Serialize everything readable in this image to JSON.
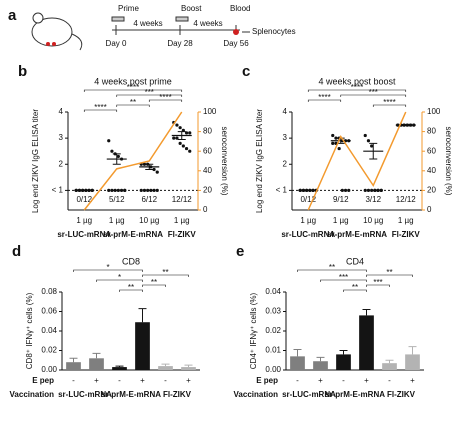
{
  "timeline": {
    "panel": "a",
    "events": [
      {
        "label": "Prime",
        "day": "Day 0"
      },
      {
        "label": "Boost",
        "day": "Day 28"
      },
      {
        "label": "Blood",
        "day": "Day 56"
      }
    ],
    "intervals": [
      "4 weeks",
      "4 weeks"
    ],
    "endpoint": "Splenocytes"
  },
  "chart_data": [
    {
      "type": "scatter_dot",
      "panel": "b",
      "title": "4 weeks post prime",
      "ylabel": "Log end ZIKV IgG  ELISA titer",
      "y2label": "seroconversion (%)",
      "categories": [
        "1 µg",
        "1 µg",
        "10 µg",
        "1 µg"
      ],
      "groups": [
        {
          "name": "sr-LUC-mRNA",
          "size": 1
        },
        {
          "name": "sr-prM-E-mRNA",
          "size": 2
        },
        {
          "name": "Fl-ZIKV",
          "size": 1
        }
      ],
      "points": [
        [
          1,
          1,
          1,
          1,
          1,
          1,
          1,
          1,
          1,
          1,
          1,
          1
        ],
        [
          2.9,
          2.5,
          2.4,
          2.3,
          2.2,
          1,
          1,
          1,
          1,
          1,
          1,
          1
        ],
        [
          2.0,
          2.0,
          2.0,
          1.9,
          1.8,
          1.7,
          1,
          1,
          1,
          1,
          1,
          1
        ],
        [
          3.6,
          3.5,
          3.4,
          3.3,
          3.2,
          3.2,
          3.0,
          3.0,
          2.8,
          2.7,
          2.6,
          2.5
        ]
      ],
      "means": [
        1,
        2.2,
        1.9,
        3.1
      ],
      "sems": [
        0,
        0.2,
        0.1,
        0.15
      ],
      "counts": [
        "0/12",
        "5/12",
        "6/12",
        "12/12"
      ],
      "seroconversion": {
        "color": "#f39a2e",
        "values": [
          0,
          42,
          50,
          100
        ]
      },
      "ylim": [
        0.25,
        4
      ],
      "yticks": [
        {
          "value": 1,
          "label": "< 1"
        },
        2,
        3,
        4
      ],
      "y2lim": [
        0,
        100
      ],
      "y2ticks": [
        0,
        20,
        40,
        60,
        80,
        100
      ],
      "significance": [
        {
          "from": 0,
          "to": 3,
          "label": "****"
        },
        {
          "from": 1,
          "to": 3,
          "label": "***"
        },
        {
          "from": 2,
          "to": 3,
          "label": "****"
        },
        {
          "from": 1,
          "to": 2,
          "label": "**"
        },
        {
          "from": 0,
          "to": 1,
          "label": "****"
        }
      ]
    },
    {
      "type": "scatter_dot",
      "panel": "c",
      "title": "4 weeks post boost",
      "ylabel": "Log end ZIKV IgG  ELISA titer",
      "y2label": "seroconversion (%)",
      "categories": [
        "1 µg",
        "1 µg",
        "10 µg",
        "1 µg"
      ],
      "groups": [
        {
          "name": "sr-LUC-mRNA",
          "size": 1
        },
        {
          "name": "sr-prM-E-mRNA",
          "size": 2
        },
        {
          "name": "Fl-ZIKV",
          "size": 1
        }
      ],
      "points": [
        [
          1,
          1,
          1,
          1,
          1,
          1,
          1,
          1,
          1,
          1,
          1,
          1
        ],
        [
          3.1,
          3.0,
          3.0,
          2.9,
          2.9,
          2.9,
          2.8,
          2.8,
          2.6,
          1,
          1,
          1
        ],
        [
          3.1,
          2.9,
          2.7,
          1,
          1,
          1,
          1,
          1,
          1,
          1,
          1,
          1
        ],
        [
          3.5,
          3.5,
          3.5,
          3.5,
          3.5,
          3.5,
          3.5,
          3.5,
          3.5,
          3.5,
          3.5,
          3.5
        ]
      ],
      "means": [
        1,
        2.9,
        2.5,
        3.5
      ],
      "sems": [
        0,
        0.1,
        0.3,
        0.02
      ],
      "counts": [
        "0/12",
        "9/12",
        "3/12",
        "12/12"
      ],
      "seroconversion": {
        "color": "#f39a2e",
        "values": [
          0,
          75,
          25,
          100
        ]
      },
      "ylim": [
        0.25,
        4
      ],
      "yticks": [
        {
          "value": 1,
          "label": "< 1"
        },
        2,
        3,
        4
      ],
      "y2lim": [
        0,
        100
      ],
      "y2ticks": [
        0,
        20,
        40,
        60,
        80,
        100
      ],
      "significance": [
        {
          "from": 0,
          "to": 3,
          "label": "****"
        },
        {
          "from": 1,
          "to": 3,
          "label": "***"
        },
        {
          "from": 0,
          "to": 1,
          "label": "****"
        },
        {
          "from": 2,
          "to": 3,
          "label": "****"
        }
      ]
    },
    {
      "type": "bar",
      "panel": "d",
      "title": "CD8",
      "ylabel": "CD8⁺ IFNγ⁺ cells (%)",
      "row_labels": [
        "E pep",
        "Vaccination"
      ],
      "categories": [
        "-",
        "+",
        "-",
        "+",
        "-",
        "+"
      ],
      "groups": [
        {
          "name": "sr-LUC-mRNA",
          "size": 2
        },
        {
          "name": "sr-prM-E-mRNA",
          "size": 2
        },
        {
          "name": "Fl-ZIKV",
          "size": 2
        }
      ],
      "values": [
        0.008,
        0.012,
        0.003,
        0.049,
        0.004,
        0.003
      ],
      "errors": [
        0.004,
        0.005,
        0.001,
        0.014,
        0.002,
        0.002
      ],
      "colors": [
        "#7f7f7f",
        "#7f7f7f",
        "#141414",
        "#141414",
        "#b3b3b3",
        "#b3b3b3"
      ],
      "ylim": [
        0,
        0.08
      ],
      "yticks": [
        {
          "value": 0,
          "label": "0.00"
        },
        {
          "value": 0.02,
          "label": "0.02"
        },
        {
          "value": 0.04,
          "label": "0.04"
        },
        {
          "value": 0.06,
          "label": "0.06"
        },
        {
          "value": 0.08,
          "label": "0.08"
        }
      ],
      "significance": [
        {
          "from": 0,
          "to": 3,
          "label": "*"
        },
        {
          "from": 3,
          "to": 5,
          "label": "**"
        },
        {
          "from": 1,
          "to": 3,
          "label": "*"
        },
        {
          "from": 3,
          "to": 4,
          "label": "**"
        },
        {
          "from": 2,
          "to": 3,
          "label": "**"
        }
      ]
    },
    {
      "type": "bar",
      "panel": "e",
      "title": "CD4",
      "ylabel": "CD4⁺ IFNγ⁺ cells (%)",
      "row_labels": [
        "E pep",
        "Vaccination"
      ],
      "categories": [
        "-",
        "+",
        "-",
        "+",
        "-",
        "+"
      ],
      "groups": [
        {
          "name": "sr-LUC-mRNA",
          "size": 2
        },
        {
          "name": "sr-prM-E-mRNA",
          "size": 2
        },
        {
          "name": "Fl-ZIKV",
          "size": 2
        }
      ],
      "values": [
        0.007,
        0.0045,
        0.008,
        0.028,
        0.0035,
        0.008
      ],
      "errors": [
        0.0035,
        0.002,
        0.002,
        0.003,
        0.0015,
        0.004
      ],
      "colors": [
        "#7f7f7f",
        "#7f7f7f",
        "#141414",
        "#141414",
        "#b3b3b3",
        "#b3b3b3"
      ],
      "ylim": [
        0,
        0.04
      ],
      "yticks": [
        {
          "value": 0,
          "label": "0.00"
        },
        {
          "value": 0.01,
          "label": "0.01"
        },
        {
          "value": 0.02,
          "label": "0.02"
        },
        {
          "value": 0.03,
          "label": "0.03"
        },
        {
          "value": 0.04,
          "label": "0.04"
        }
      ],
      "significance": [
        {
          "from": 0,
          "to": 3,
          "label": "**"
        },
        {
          "from": 3,
          "to": 5,
          "label": "**"
        },
        {
          "from": 1,
          "to": 3,
          "label": "***"
        },
        {
          "from": 3,
          "to": 4,
          "label": "***"
        },
        {
          "from": 2,
          "to": 3,
          "label": "**"
        }
      ]
    }
  ]
}
